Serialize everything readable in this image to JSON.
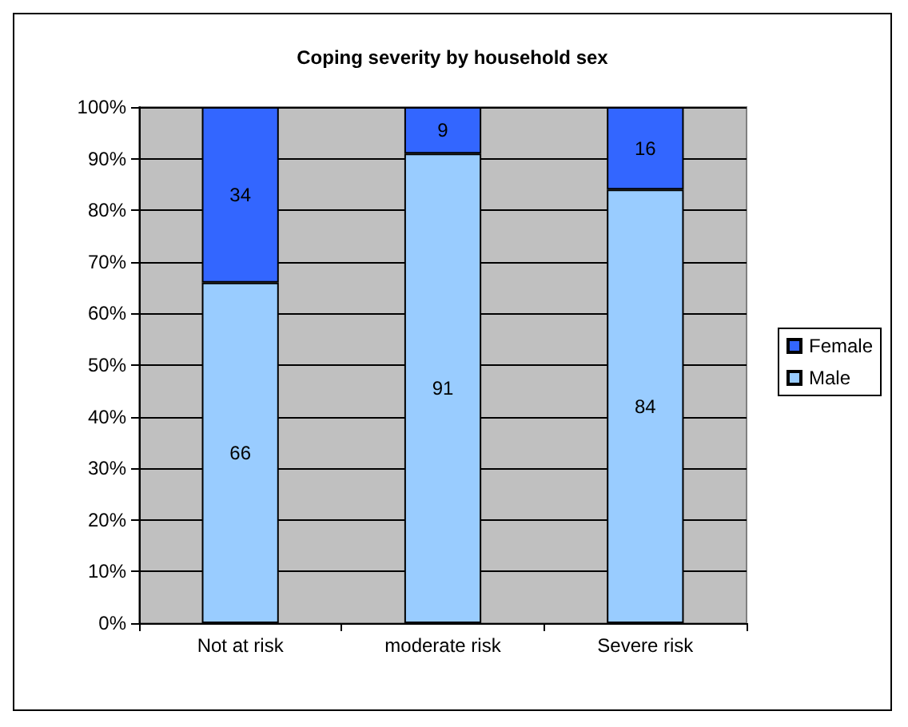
{
  "chart_data": {
    "type": "bar",
    "title": "Coping severity by household sex",
    "categories": [
      "Not at risk",
      "moderate risk",
      "Severe risk"
    ],
    "stacked": true,
    "series": [
      {
        "name": "Male",
        "color": "#99ccff",
        "values": [
          66,
          91,
          84
        ]
      },
      {
        "name": "Female",
        "color": "#3366ff",
        "values": [
          34,
          9,
          16
        ]
      }
    ],
    "ylim": [
      0,
      100
    ],
    "yticks": [
      {
        "value": 0,
        "label": "0%"
      },
      {
        "value": 10,
        "label": "10%"
      },
      {
        "value": 20,
        "label": "20%"
      },
      {
        "value": 30,
        "label": "30%"
      },
      {
        "value": 40,
        "label": "40%"
      },
      {
        "value": 50,
        "label": "50%"
      },
      {
        "value": 60,
        "label": "60%"
      },
      {
        "value": 70,
        "label": "70%"
      },
      {
        "value": 80,
        "label": "80%"
      },
      {
        "value": 90,
        "label": "90%"
      },
      {
        "value": 100,
        "label": "100%"
      }
    ],
    "grid": "y",
    "legend": "right",
    "data_labels": true
  }
}
